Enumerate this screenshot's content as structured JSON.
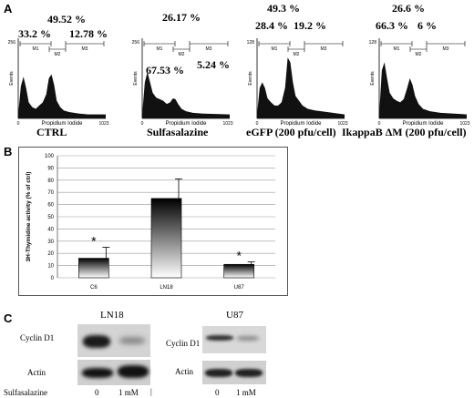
{
  "panels": {
    "A": {
      "letter": "A",
      "histograms": [
        {
          "condition": "CTRL",
          "p_top": "49.52 %",
          "p_m1": "33.2 %",
          "p_m3": "12.78 %",
          "ymax": "256"
        },
        {
          "condition": "Sulfasalazine",
          "p_top": "26.17 %",
          "p_m1": "67.53 %",
          "p_m3": "5.24 %",
          "ymax": "256"
        },
        {
          "condition": "eGFP (200 pfu/cell)",
          "p_top": "49.3 %",
          "p_m1": "28.4 %",
          "p_m3": "19.2 %",
          "ymax": "128"
        },
        {
          "condition": "IkappaB ΔM (200 pfu/cell)",
          "p_top": "26.6 %",
          "p_m1": "66.3 %",
          "p_m3": "6 %",
          "ymax": "128"
        }
      ],
      "axis": {
        "xlabel": "Propidium Iodide",
        "ylabel": "Events",
        "xmin": "0",
        "xmax": "1023"
      },
      "markers": {
        "m1": "M1",
        "m2": "M2",
        "m3": "M3"
      }
    },
    "B": {
      "letter": "B"
    },
    "C": {
      "letter": "C",
      "ln18": {
        "title": "LN18",
        "row1": "Cyclin D1",
        "row2": "Actin"
      },
      "u87": {
        "title": "U87",
        "row1": "Cyclin D1",
        "row2": "Actin"
      },
      "treatment_label": "Sulfasalazine",
      "lanes_left": [
        "0",
        "1 mM"
      ],
      "lanes_right": [
        "0",
        "1 mM"
      ]
    }
  },
  "chart_data": {
    "type": "bar",
    "categories": [
      "C6",
      "LN18",
      "U87"
    ],
    "values": [
      16,
      65,
      11
    ],
    "errors": [
      9,
      16,
      2
    ],
    "significant": [
      "*",
      "",
      "*"
    ],
    "ylabel": "3H-Thymidine activity (% of ctrl)",
    "ylim": [
      0,
      100
    ],
    "yticks": [
      0,
      10,
      20,
      30,
      40,
      50,
      60,
      70,
      80,
      90,
      100
    ],
    "grid": true
  }
}
